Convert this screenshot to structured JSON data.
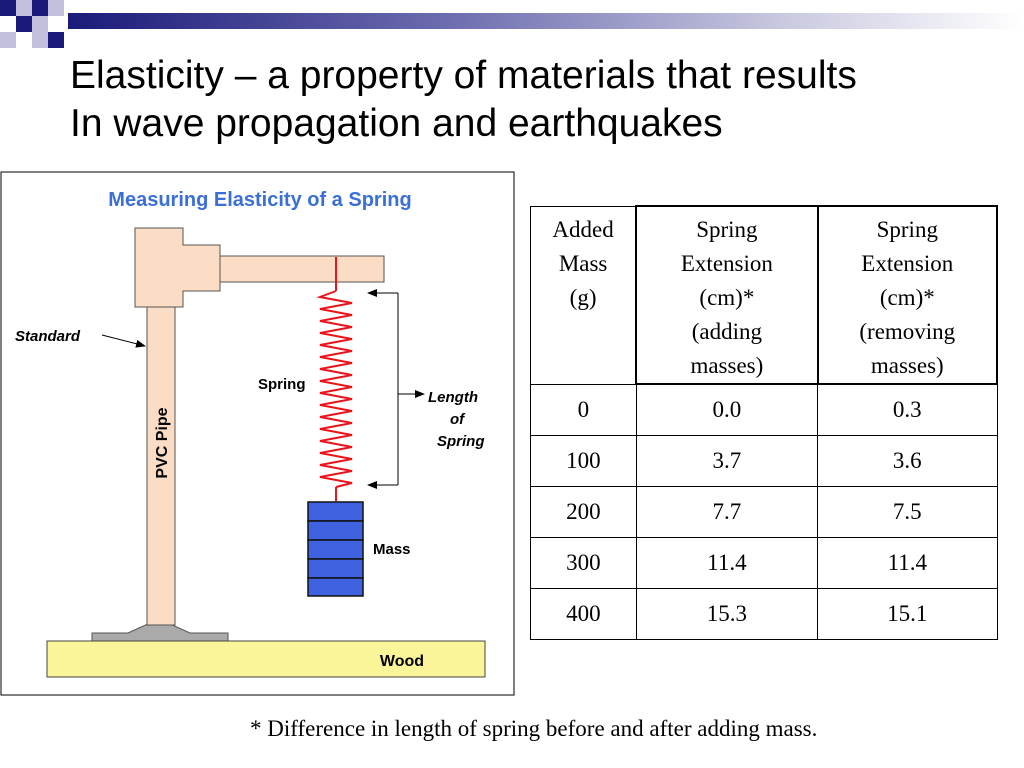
{
  "title": {
    "line1": "Elasticity – a property of materials that results",
    "line2": "In wave propagation and earthquakes"
  },
  "diagram": {
    "heading": "Measuring Elasticity of a Spring",
    "standard_label": "Standard",
    "pipe_label": "PVC Pipe",
    "spring_label": "Spring",
    "length_label_1": "Length",
    "length_label_2": "of",
    "length_label_3": "Spring",
    "mass_label": "Mass",
    "wood_label": "Wood"
  },
  "table": {
    "headers": [
      [
        "Added",
        "Mass",
        "(g)"
      ],
      [
        "Spring",
        "Extension",
        "(cm)*",
        "(adding",
        "masses)"
      ],
      [
        "Spring",
        "Extension",
        "(cm)*",
        "(removing",
        "masses)"
      ]
    ],
    "rows": [
      [
        "0",
        "0.0",
        "0.3"
      ],
      [
        "100",
        "3.7",
        "3.6"
      ],
      [
        "200",
        "7.7",
        "7.5"
      ],
      [
        "300",
        "11.4",
        "11.4"
      ],
      [
        "400",
        "15.3",
        "15.1"
      ]
    ]
  },
  "footnote": "* Difference in length of spring before and after adding mass.",
  "colors": {
    "diagram_heading": "#3a6fd8",
    "pipe": "#fbdcc4",
    "spring": "#e8141c",
    "mass": "#3f63e0",
    "wood": "#fbf59a",
    "base": "#aaaaaa"
  }
}
